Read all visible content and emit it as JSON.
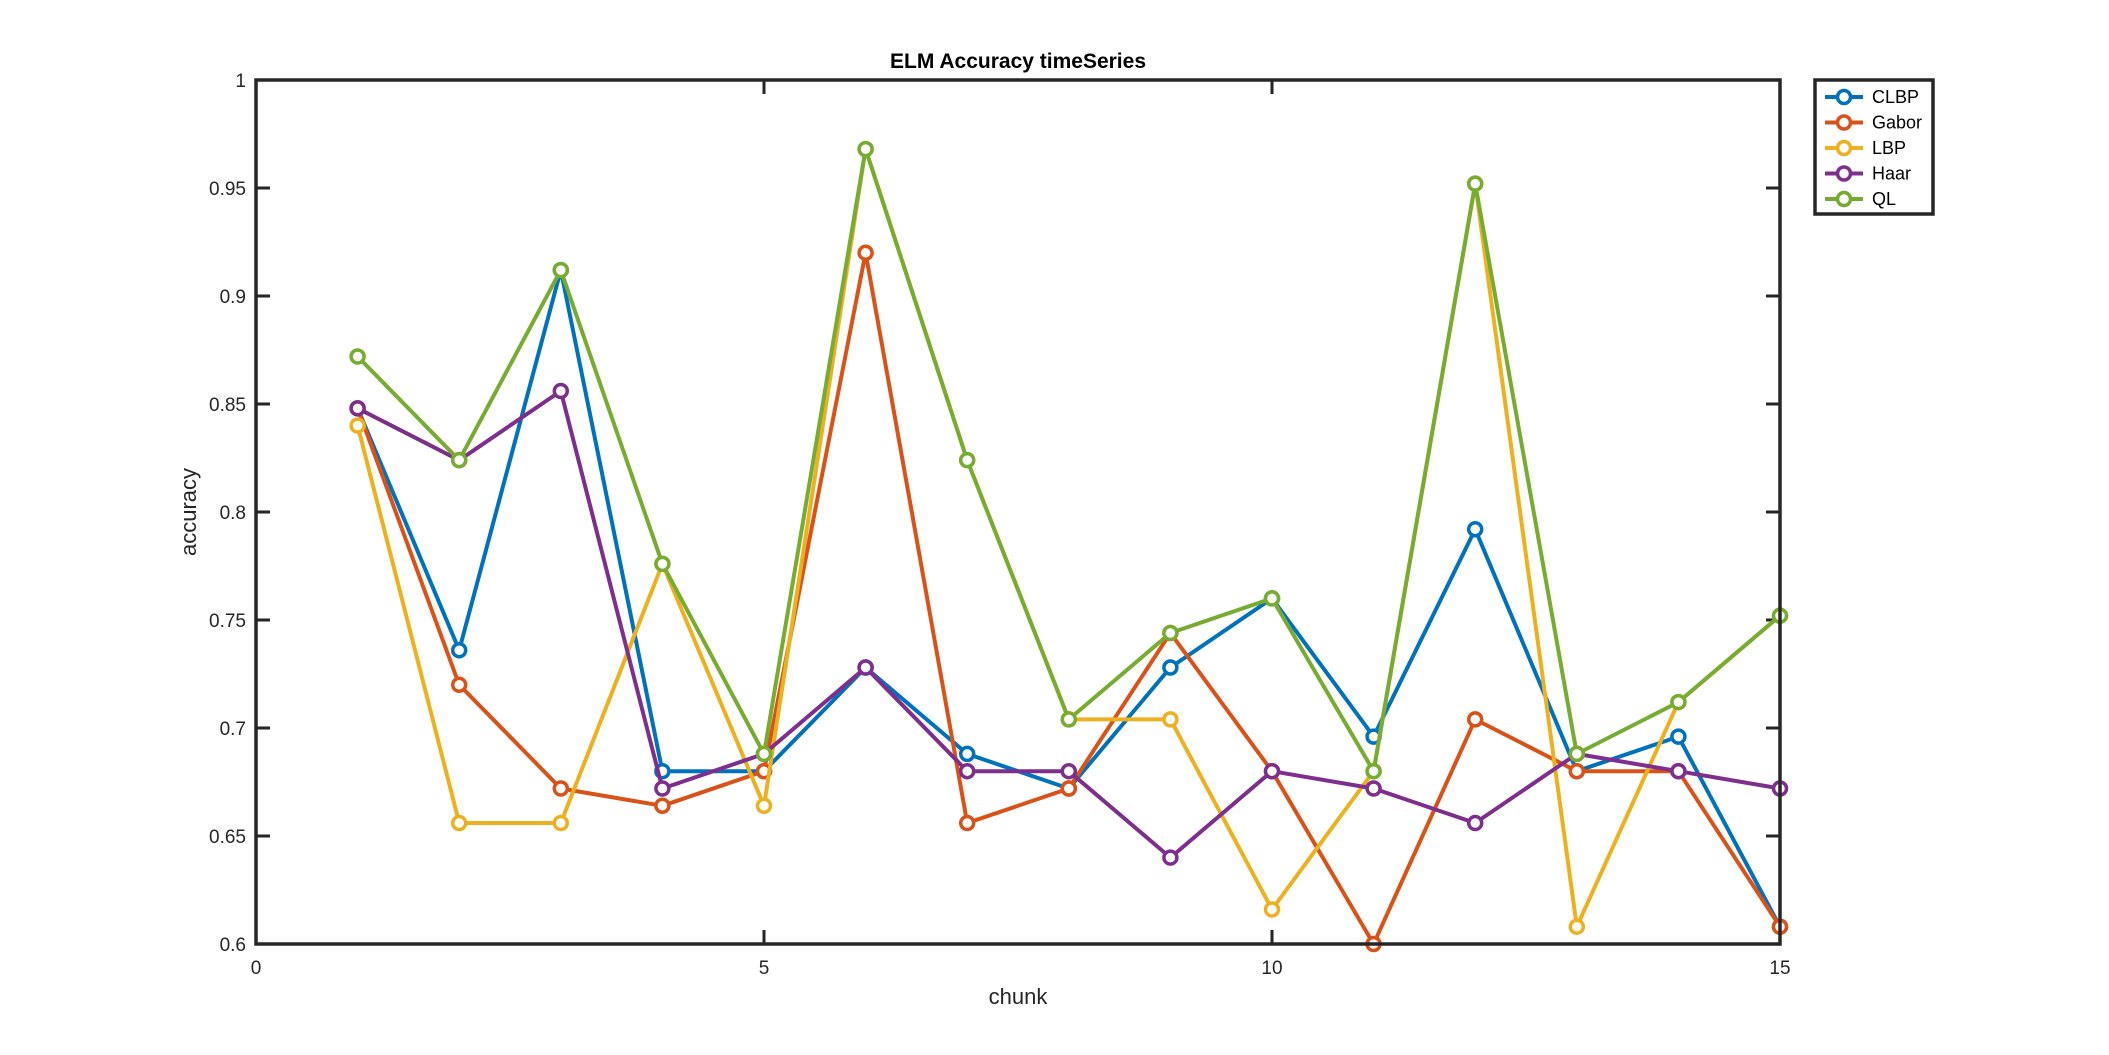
{
  "chart_data": {
    "type": "line",
    "title": "ELM Accuracy timeSeries",
    "xlabel": "chunk",
    "ylabel": "accuracy",
    "xlim": [
      0,
      15
    ],
    "ylim": [
      0.6,
      1
    ],
    "xticks": [
      0,
      5,
      10,
      15
    ],
    "yticks": [
      0.6,
      0.65,
      0.7,
      0.75,
      0.8,
      0.85,
      0.9,
      0.95,
      1
    ],
    "xtick_labels": [
      "0",
      "5",
      "10",
      "15"
    ],
    "ytick_labels": [
      "0.6",
      "0.65",
      "0.7",
      "0.75",
      "0.8",
      "0.85",
      "0.9",
      "0.95",
      "1"
    ],
    "grid": false,
    "legend_position": "outside top-right",
    "x": [
      1,
      2,
      3,
      4,
      5,
      6,
      7,
      8,
      9,
      10,
      11,
      12,
      13,
      14,
      15
    ],
    "series": [
      {
        "name": "CLBP",
        "color": "#0072BD",
        "values": [
          0.848,
          0.736,
          0.912,
          0.68,
          0.68,
          0.728,
          0.688,
          0.672,
          0.728,
          0.76,
          0.696,
          0.792,
          0.68,
          0.696,
          0.608
        ]
      },
      {
        "name": "Gabor",
        "color": "#D95319",
        "values": [
          0.848,
          0.72,
          0.672,
          0.664,
          0.68,
          0.92,
          0.656,
          0.672,
          0.744,
          0.68,
          0.6,
          0.704,
          0.68,
          0.68,
          0.608
        ]
      },
      {
        "name": "LBP",
        "color": "#EDB120",
        "values": [
          0.84,
          0.656,
          0.656,
          0.776,
          0.664,
          0.968,
          0.824,
          0.704,
          0.704,
          0.616,
          0.68,
          0.952,
          0.608,
          0.712,
          0.752
        ]
      },
      {
        "name": "Haar",
        "color": "#7E2F8E",
        "values": [
          0.848,
          0.824,
          0.856,
          0.672,
          0.688,
          0.728,
          0.68,
          0.68,
          0.64,
          0.68,
          0.672,
          0.656,
          0.688,
          0.68,
          0.672
        ]
      },
      {
        "name": "QL",
        "color": "#77AC30",
        "values": [
          0.872,
          0.824,
          0.912,
          0.776,
          0.688,
          0.968,
          0.824,
          0.704,
          0.744,
          0.76,
          0.68,
          0.952,
          0.688,
          0.712,
          0.752
        ]
      }
    ]
  }
}
